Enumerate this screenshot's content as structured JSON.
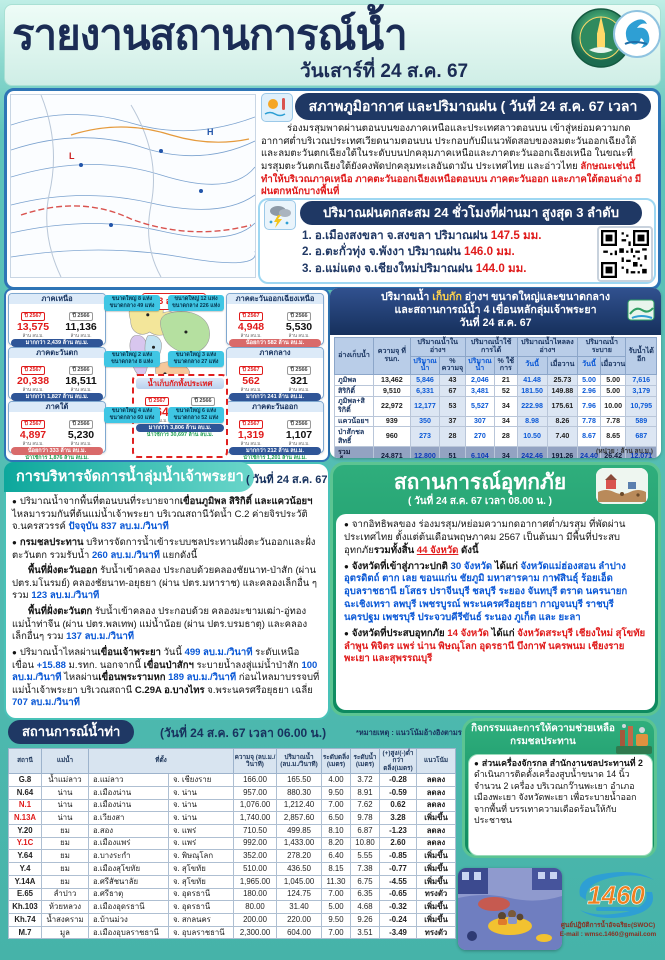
{
  "colors": {
    "navy": "#1f3864",
    "teal": "#14a79c",
    "green_panel": "#1d9a6a",
    "red": "#e01b1b",
    "blue_value": "#0a58d6",
    "amber": "#bf8f00",
    "trend_down_green": "#00a550",
    "trend_steady_orange": "#e36c0a"
  },
  "header": {
    "title": "รายงานสถานการณ์น้ำ",
    "date": "วันเสาร์ที่ 24 ส.ค. 67",
    "logo1": "กรมชลประทาน",
    "logo2": "SWOC"
  },
  "weather": {
    "title": "สภาพภูมิอากาศ และปริมาณฝน ( วันที่ 24 ส.ค. 67 เวลา 06.00 น. )",
    "body_rich": [
      {
        "t": "ร่องมรสุมพาดผ่านตอนบนของภาคเหนือและประเทศลาวตอนบน เข้าสู่หย่อมความกดอากาศต่ำบริเวณประเทศเวียดนามตอนบน ประกอบกับมีแนวพัดสอบของลมตะวันออกเฉียงใต้และลมตะวันตกเฉียงใต้ในระดับบนปกคลุมภาคเหนือและภาคตะวันออกเฉียงเหนือ ในขณะที่มรสุมตะวันตกเฉียงใต้ยังคงพัดปกคลุมทะเลอันดามัน ประเทศไทย และอ่าวไทย ",
        "c": "n"
      },
      {
        "t": "ลักษณะเช่นนี้ทำให้บริเวณภาคเหนือ ภาคตะวันออกเฉียงเหนือตอนบน ภาคตะวันออก และภาคใต้ตอนล่าง มีฝนตกหนักบางพื้นที่",
        "c": "r"
      }
    ]
  },
  "rainfall": {
    "title": "ปริมาณฝนตกสะสม 24 ชั่วโมงที่ผ่านมา สูงสุด 3 ลำดับ",
    "items": [
      {
        "text": "1. อ.เมืองสงขลา จ.สงขลา ปริมาณฝน ",
        "value": "147.5 มม."
      },
      {
        "text": "2. อ.ตะกั่วทุ่ง จ.พังงา ปริมาณฝน ",
        "value": "146.0 มม."
      },
      {
        "text": "3. อ.แม่แตง จ.เชียงใหม่ปริมาณฝน ",
        "value": "144.0 มม."
      }
    ]
  },
  "storage_map": {
    "map_date": "23 ส.ค. 67",
    "year_now": "ปี 2567",
    "year_prev": "ปี 2566",
    "unit": "ล้าน ลบ.ม.",
    "nationwide": {
      "title": "น้ำเก็บกักทั้งประเทศ",
      "v_now": "45,641",
      "v_prev": "41,835",
      "diff_text": "มากกว่า 3,806 ล้าน ลบ.ม.",
      "diff_type": "more",
      "usable_text": "น้ำใช้การ 30,697 ล้าน ลบ.ม."
    },
    "regions": [
      {
        "name": "ภาคเหนือ",
        "v_now": "13,575",
        "v_prev": "11,136",
        "diff_text": "มากกว่า 2,439 ล้าน ลบ.ม.",
        "diff_type": "more",
        "usable_text": "น้ำใช้การ 12,014 ล้าน ลบ.ม.",
        "tag1": "ขนาดใหญ่ 8 แห่ง",
        "tag2": "ขนาดกลาง 49 แห่ง"
      },
      {
        "name": "ภาคตะวันตก",
        "v_now": "20,338",
        "v_prev": "18,511",
        "diff_text": "มากกว่า 1,827 ล้าน ลบ.ม.",
        "diff_type": "more",
        "usable_text": "น้ำใช้การ 4,400 ล้าน ลบ.ม.",
        "tag1": "ขนาดใหญ่ 2 แห่ง",
        "tag2": "ขนาดกลาง 8 แห่ง"
      },
      {
        "name": "ภาคใต้",
        "v_now": "4,897",
        "v_prev": "5,230",
        "diff_text": "น้อยกว่า 333 ล้าน ลบ.ม.",
        "diff_type": "less",
        "usable_text": "น้ำใช้การ 1,876 ล้าน ลบ.ม.",
        "tag1": "ขนาดใหญ่ 4 แห่ง",
        "tag2": "ขนาดกลาง 60 แห่ง"
      },
      {
        "name": "ภาคตะวันออกเฉียงเหนือ",
        "v_now": "4,948",
        "v_prev": "5,530",
        "diff_text": "น้อยกว่า 582 ล้าน ลบ.ม.",
        "diff_type": "less",
        "usable_text": "น้ำใช้การ 3,881 ล้าน ลบ.ม.",
        "tag1": "ขนาดใหญ่ 12 แห่ง",
        "tag2": "ขนาดกลาง 226 แห่ง"
      },
      {
        "name": "ภาคกลาง",
        "v_now": "562",
        "v_prev": "321",
        "diff_text": "มากกว่า 241 ล้าน ลบ.ม.",
        "diff_type": "more",
        "usable_text": "น้ำใช้การ 275 ล้าน ลบ.ม.",
        "tag1": "ขนาดใหญ่ 3 แห่ง",
        "tag2": "ขนาดกลาง 27 แห่ง"
      },
      {
        "name": "ภาคตะวันออก",
        "v_now": "1,319",
        "v_prev": "1,107",
        "diff_text": "มากกว่า 212 ล้าน ลบ.ม.",
        "diff_type": "more",
        "usable_text": "น้ำใช้การ 1,201 ล้าน ลบ.ม.",
        "tag1": "ขนาดใหญ่ 6 แห่ง",
        "tag2": "ขนาดกลาง 52 แห่ง"
      }
    ]
  },
  "reservoir_table": {
    "title_rich": [
      {
        "t": "ปริมาณน้ำ ",
        "c": "w"
      },
      {
        "t": "เก็บกัก",
        "c": "y"
      },
      {
        "t": " อ่างฯ ขนาดใหญ่และขนาดกลาง",
        "c": "w"
      }
    ],
    "title_line2": "และสถานการณ์น้ำ 4 เขื่อนหลักลุ่มเจ้าพระยา",
    "title_line3": "วันที่ 24 ส.ค. 67",
    "headers": {
      "reservoir": "อ่างเก็บน้ำ",
      "capacity": "ความจุ ที่ รนก.",
      "in_storage": "ปริมาณน้ำในอ่างฯ",
      "usable": "ปริมาณน้ำใช้การได้",
      "inflow": "ปริมาณน้ำไหลลงอ่างฯ",
      "release": "ปริมาณน้ำระบาย",
      "remaining": "รับน้ำได้อีก",
      "sub_volume": "ปริมาณน้ำ",
      "sub_pct_capacity": "% ความจุ",
      "sub_pct_usable": "% ใช้การ",
      "sub_today": "วันนี้",
      "sub_yesterday": "เมื่อวาน"
    },
    "rows": [
      [
        "ภูมิพล",
        "13,462",
        "5,846",
        "43",
        "2,046",
        "21",
        "41.48",
        "25.73",
        "5.00",
        "5.00",
        "7,616"
      ],
      [
        "สิริกิติ์",
        "9,510",
        "6,331",
        "67",
        "3,481",
        "52",
        "181.50",
        "149.88",
        "2.96",
        "5.00",
        "3,179"
      ],
      [
        "ภูมิพล+สิริกิติ์",
        "22,972",
        "12,177",
        "53",
        "5,527",
        "34",
        "222.98",
        "175.61",
        "7.96",
        "10.00",
        "10,795"
      ],
      [
        "แควน้อยฯ",
        "939",
        "350",
        "37",
        "307",
        "34",
        "8.98",
        "8.26",
        "7.78",
        "7.78",
        "589"
      ],
      [
        "ป่าสักชลสิทธิ์",
        "960",
        "273",
        "28",
        "270",
        "28",
        "10.50",
        "7.40",
        "8.67",
        "8.65",
        "687"
      ]
    ],
    "total": [
      "รวมทั้งหมด",
      "24,871",
      "12,800",
      "51",
      "6,104",
      "34",
      "242.46",
      "191.26",
      "24.40",
      "26.42",
      "12,071"
    ],
    "unit_note": "(หน่วย : ล้าน ลบ.ม.)"
  },
  "chao_phraya": {
    "title": "การบริหารจัดการน้ำลุ่มน้ำเจ้าพระยา",
    "date": "( วันที่ 24 ส.ค. 67 )",
    "paragraphs": [
      {
        "bullet": true,
        "indent": false,
        "rich": [
          {
            "t": "ปริมาณน้ำจากพื้นที่ตอนบนที่ระบายจาก",
            "c": "n"
          },
          {
            "t": "เขื่อนภูมิพล สิริกิติ์ และแควน้อยฯ",
            "c": "b"
          },
          {
            "t": " ไหลมารวมกันที่ต้นแม่น้ำเจ้าพระยา บริเวณสถานีวัดน้ำ C.2 ค่ายจิรประวัติ จ.นครสวรรค์ ",
            "c": "n"
          },
          {
            "t": "ปัจจุบัน 837 ลบ.ม./วินาที",
            "c": "bl"
          }
        ]
      },
      {
        "bullet": true,
        "indent": false,
        "rich": [
          {
            "t": "กรมชลประทาน",
            "c": "b"
          },
          {
            "t": " บริหารจัดการน้ำเข้าระบบชลประทานฝั่งตะวันออกและฝั่งตะวันตก รวมรับน้ำ ",
            "c": "n"
          },
          {
            "t": "260 ลบ.ม./วินาที",
            "c": "bl"
          },
          {
            "t": " แยกดังนี้",
            "c": "n"
          }
        ]
      },
      {
        "bullet": false,
        "indent": true,
        "rich": [
          {
            "t": "พื้นที่ฝั่งตะวันออก",
            "c": "b"
          },
          {
            "t": " รับน้ำเข้าคลอง ประกอบด้วยคลองชัยนาท-ป่าสัก (ผ่าน ปตร.มโนรมย์) คลองชัยนาท-อยุธยา (ผ่าน ปตร.มหาราช) และคลองเล็กอื่น ๆ รวม ",
            "c": "n"
          },
          {
            "t": "123 ลบ.ม./วินาที",
            "c": "bl"
          }
        ]
      },
      {
        "bullet": false,
        "indent": true,
        "rich": [
          {
            "t": "พื้นที่ฝั่งตะวันตก",
            "c": "b"
          },
          {
            "t": " รับน้ำเข้าคลอง ประกอบด้วย คลองมะขามเฒ่า-อู่ทอง แม่น้ำท่าจีน (ผ่าน ปตร.พลเทพ) แม่น้ำน้อย (ผ่าน ปตร.บรมธาตุ) และคลองเล็กอื่นๆ รวม ",
            "c": "n"
          },
          {
            "t": "137 ลบ.ม./วินาที",
            "c": "bl"
          }
        ]
      },
      {
        "bullet": true,
        "indent": false,
        "rich": [
          {
            "t": "ปริมาณน้ำไหลผ่าน",
            "c": "n"
          },
          {
            "t": "เขื่อนเจ้าพระยา",
            "c": "b"
          },
          {
            "t": " วันนี้ ",
            "c": "n"
          },
          {
            "t": "499 ลบ.ม./วินาที",
            "c": "bl"
          },
          {
            "t": " ระดับเหนือเขื่อน ",
            "c": "n"
          },
          {
            "t": "+15.88",
            "c": "bl"
          },
          {
            "t": " ม.รทก. นอกจากนี้ ",
            "c": "n"
          },
          {
            "t": "เขื่อนป่าสักฯ",
            "c": "b"
          },
          {
            "t": " ระบายน้ำลงสู่แม่น้ำป่าสัก ",
            "c": "n"
          },
          {
            "t": "100 ลบ.ม./วินาที",
            "c": "bl"
          },
          {
            "t": " ไหลผ่าน",
            "c": "n"
          },
          {
            "t": "เขื่อนพระรามหก",
            "c": "b"
          },
          {
            "t": " ",
            "c": "n"
          },
          {
            "t": "189 ลบ.ม./วินาที",
            "c": "bl"
          },
          {
            "t": " ก่อนไหลมาบรรจบที่แม่น้ำเจ้าพระยา บริเวณสถานี ",
            "c": "n"
          },
          {
            "t": "C.29A อ.บางไทร",
            "c": "b"
          },
          {
            "t": " จ.พระนครศรีอยุธยา เฉลี่ย ",
            "c": "n"
          },
          {
            "t": "707 ลบ.ม./วินาที",
            "c": "bl"
          }
        ]
      }
    ]
  },
  "flood": {
    "title": "สถานการณ์อุทกภัย",
    "date": "( วันที่ 24 ส.ค. 67 เวลา 08.00 น. )",
    "bullets": [
      [
        {
          "t": "จากอิทธิพลของ ร่องมรสุม/หย่อมความกดอากาศต่ำ/มรสุม ที่พัดผ่านประเทศไทย ตั้งแต่ต้นเดือนพฤษภาคม 2567 เป็นต้นมา มีพื้นที่ประสบอุทกภัย",
          "c": "n"
        },
        {
          "t": "รวมทั้งสิ้น ",
          "c": "b"
        },
        {
          "t": "44 จังหวัด",
          "c": "ru"
        },
        {
          "t": " ดังนี้",
          "c": "b"
        }
      ],
      [
        {
          "t": "จังหวัดที่เข้าสู่ภาวะปกติ ",
          "c": "b"
        },
        {
          "t": "30 จังหวัด",
          "c": "bl"
        },
        {
          "t": " ได้แก่ ",
          "c": "b"
        },
        {
          "t": "จังหวัดแม่ฮ่องสอน ลำปาง อุตรดิตถ์ ตาก เลย ขอนแก่น ชัยภูมิ มหาสารคาม กาฬสินธุ์ ร้อยเอ็ด อุบลราชธานี ยโสธร ปราจีนบุรี ชลบุรี ระยอง จันทบุรี ตราด นครนายก ฉะเชิงเทรา ลพบุรี เพชรบูรณ์ พระนครศรีอยุธยา กาญจนบุรี ราชบุรี นครปฐม เพชรบุรี ประจวบคีรีขันธ์ ระนอง ภูเก็ต และ ยะลา",
          "c": "bl"
        }
      ],
      [
        {
          "t": "จังหวัดที่ประสบอุทกภัย ",
          "c": "b"
        },
        {
          "t": "14 จังหวัด",
          "c": "r"
        },
        {
          "t": " ได้แก่ ",
          "c": "b"
        },
        {
          "t": "จังหวัดสระบุรี เชียงใหม่ สุโขทัย ลำพูน พิจิตร แพร่ น่าน พิษณุโลก อุดรธานี บึงกาฬ นครพนม เชียงราย พะเยา และสุพรรณบุรี",
          "c": "r"
        }
      ]
    ]
  },
  "river_table": {
    "title": "สถานการณ์น้ำท่า",
    "date": "(วันที่ 24 ส.ค. 67 เวลา 06.00 น.)",
    "note": "*หมายเหตุ : แนวโน้มอ้างอิงตามระดับน้ำรายชั่วโมง",
    "headers": {
      "station": "สถานี",
      "river": "แม่น้ำ",
      "location": "ที่ตั้ง",
      "capacity": "ความจุ (ลบ.ม./วินาที)",
      "flow": "ปริมาณน้ำ (ลบ.ม./วินาที)",
      "bank": "ระดับตลิ่ง (เมตร)",
      "level": "ระดับน้ำ (เมตร)",
      "diff": "(+)สูง/(-)ต่ำ กว่าตลิ่ง(เมตร)",
      "trend": "แนวโน้ม"
    },
    "trend_labels": {
      "down": "ลดลง",
      "up": "เพิ่มขึ้น",
      "steady": "ทรงตัว"
    },
    "rows": [
      {
        "station": "G.8",
        "alert": false,
        "river": "น้ำแม่ลาว",
        "district": "อ.แม่ลาว",
        "province": "จ. เชียงราย",
        "capacity": "166.00",
        "flow": "165.50",
        "bank": "4.00",
        "level": "3.72",
        "diff": "-0.28",
        "diff_c": "neg",
        "trend": "down"
      },
      {
        "station": "N.64",
        "alert": false,
        "river": "น่าน",
        "district": "อ.เมืองน่าน",
        "province": "จ. น่าน",
        "capacity": "957.00",
        "flow": "880.30",
        "bank": "9.50",
        "level": "8.91",
        "diff": "-0.59",
        "diff_c": "neg",
        "trend": "down"
      },
      {
        "station": "N.1",
        "alert": true,
        "river": "น่าน",
        "district": "อ.เมืองน่าน",
        "province": "จ. น่าน",
        "capacity": "1,076.00",
        "flow": "1,212.40",
        "bank": "7.00",
        "level": "7.62",
        "diff": "0.62",
        "diff_c": "pos",
        "trend": "down"
      },
      {
        "station": "N.13A",
        "alert": true,
        "river": "น่าน",
        "district": "อ.เวียงสา",
        "province": "จ. น่าน",
        "capacity": "1,740.00",
        "flow": "2,857.60",
        "bank": "6.50",
        "level": "9.78",
        "diff": "3.28",
        "diff_c": "pos",
        "trend": "up"
      },
      {
        "station": "Y.20",
        "alert": false,
        "river": "ยม",
        "district": "อ.สอง",
        "province": "จ. แพร่",
        "capacity": "710.50",
        "flow": "499.85",
        "bank": "8.10",
        "level": "6.87",
        "diff": "-1.23",
        "diff_c": "neg",
        "trend": "down"
      },
      {
        "station": "Y.1C",
        "alert": true,
        "river": "ยม",
        "district": "อ.เมืองแพร่",
        "province": "จ. แพร่",
        "capacity": "992.00",
        "flow": "1,433.00",
        "bank": "8.20",
        "level": "10.80",
        "diff": "2.60",
        "diff_c": "pos",
        "trend": "down"
      },
      {
        "station": "Y.64",
        "alert": false,
        "river": "ยม",
        "district": "อ.บางระกำ",
        "province": "จ. พิษณุโลก",
        "capacity": "352.00",
        "flow": "278.20",
        "bank": "6.40",
        "level": "5.55",
        "diff": "-0.85",
        "diff_c": "neg",
        "trend": "up"
      },
      {
        "station": "Y.4",
        "alert": false,
        "river": "ยม",
        "district": "อ.เมืองสุโขทัย",
        "province": "จ. สุโขทัย",
        "capacity": "510.00",
        "flow": "436.50",
        "bank": "8.15",
        "level": "7.38",
        "diff": "-0.77",
        "diff_c": "neg",
        "trend": "up"
      },
      {
        "station": "Y.14A",
        "alert": false,
        "river": "ยม",
        "district": "อ.ศรีสัชนาลัย",
        "province": "จ. สุโขทัย",
        "capacity": "1,965.00",
        "flow": "1,045.00",
        "bank": "11.30",
        "level": "6.75",
        "diff": "-4.55",
        "diff_c": "neg",
        "trend": "up"
      },
      {
        "station": "E.65",
        "alert": false,
        "river": "ลำปาว",
        "district": "อ.ศรีธาตุ",
        "province": "จ. อุดรธานี",
        "capacity": "180.00",
        "flow": "124.75",
        "bank": "7.00",
        "level": "6.35",
        "diff": "-0.65",
        "diff_c": "neg",
        "trend": "steady"
      },
      {
        "station": "Kh.103",
        "alert": false,
        "river": "ห้วยหลวง",
        "district": "อ.เมืองอุดรธานี",
        "province": "จ. อุดรธานี",
        "capacity": "80.00",
        "flow": "31.40",
        "bank": "5.00",
        "level": "4.68",
        "diff": "-0.32",
        "diff_c": "neg",
        "trend": "up"
      },
      {
        "station": "Kh.74",
        "alert": false,
        "river": "น้ำสงคราม",
        "district": "อ.บ้านม่วง",
        "province": "จ. สกลนคร",
        "capacity": "200.00",
        "flow": "220.00",
        "bank": "9.50",
        "level": "9.26",
        "diff": "-0.24",
        "diff_c": "neg",
        "trend": "up"
      },
      {
        "station": "M.7",
        "alert": false,
        "river": "มูล",
        "district": "อ.เมืองอุบลราชธานี",
        "province": "จ. อุบลราชธานี",
        "capacity": "2,300.00",
        "flow": "604.00",
        "bank": "7.00",
        "level": "3.51",
        "diff": "-3.49",
        "diff_c": "neg",
        "trend": "steady"
      }
    ]
  },
  "activities": {
    "title1": "กิจกรรมและการให้ความช่วยเหลือ",
    "title2": "กรมชลประทาน",
    "body_rich": [
      {
        "t": "ส่วนเครื่องจักรกล สำนักงานชลประทานที่ 2",
        "c": "b"
      },
      {
        "t": " ดำเนินการติดตั้งเครื่องสูบน้ำขนาด 14 นิ้ว จำนวน 2 เครื่อง บริเวณกว๊านพะเยา อำเภอเมืองพะเยา จังหวัดพะเยา เพื่อระบายน้ำออกจากพื้นที่ บรรเทาความเดือดร้อนให้กับประชาชน",
        "c": "n"
      }
    ],
    "hotline": "1460",
    "caption1": "ศูนย์ปฏิบัติการน้ำอัจฉริยะ(SWOC)",
    "caption2": "E-mail : wmsc.1460@gmail.com"
  }
}
